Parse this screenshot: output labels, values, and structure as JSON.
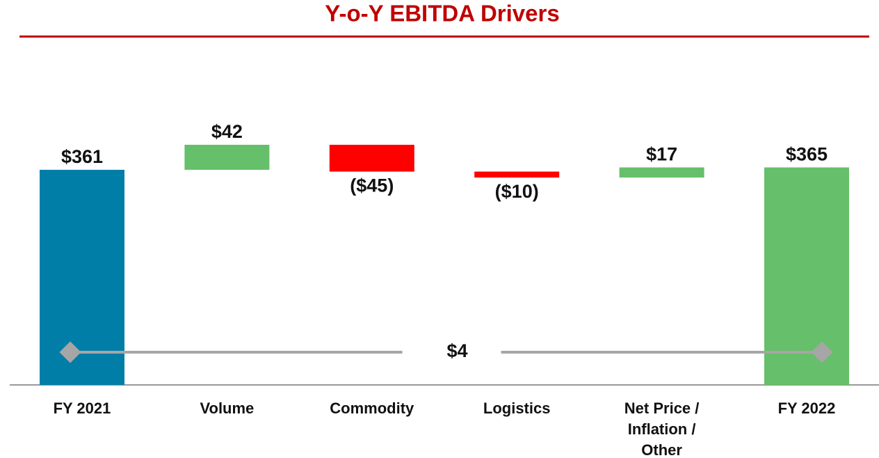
{
  "chart_data": {
    "type": "waterfall",
    "title": "Y-o-Y EBITDA Drivers",
    "categories": [
      "FY 2021",
      "Volume",
      "Commodity",
      "Logistics",
      "Net Price / Inflation / Other",
      "FY 2022"
    ],
    "values": [
      361,
      42,
      -45,
      -10,
      17,
      365
    ],
    "value_labels": [
      "$361",
      "$42",
      "($45)",
      "($10)",
      "$17",
      "$365"
    ],
    "totals": [
      true,
      false,
      false,
      false,
      false,
      true
    ],
    "colors": [
      "#007ea7",
      "#66bf6a",
      "#ff0000",
      "#ff0000",
      "#66bf6a",
      "#66bf6a"
    ],
    "difference": {
      "value": 4,
      "label": "$4"
    }
  }
}
